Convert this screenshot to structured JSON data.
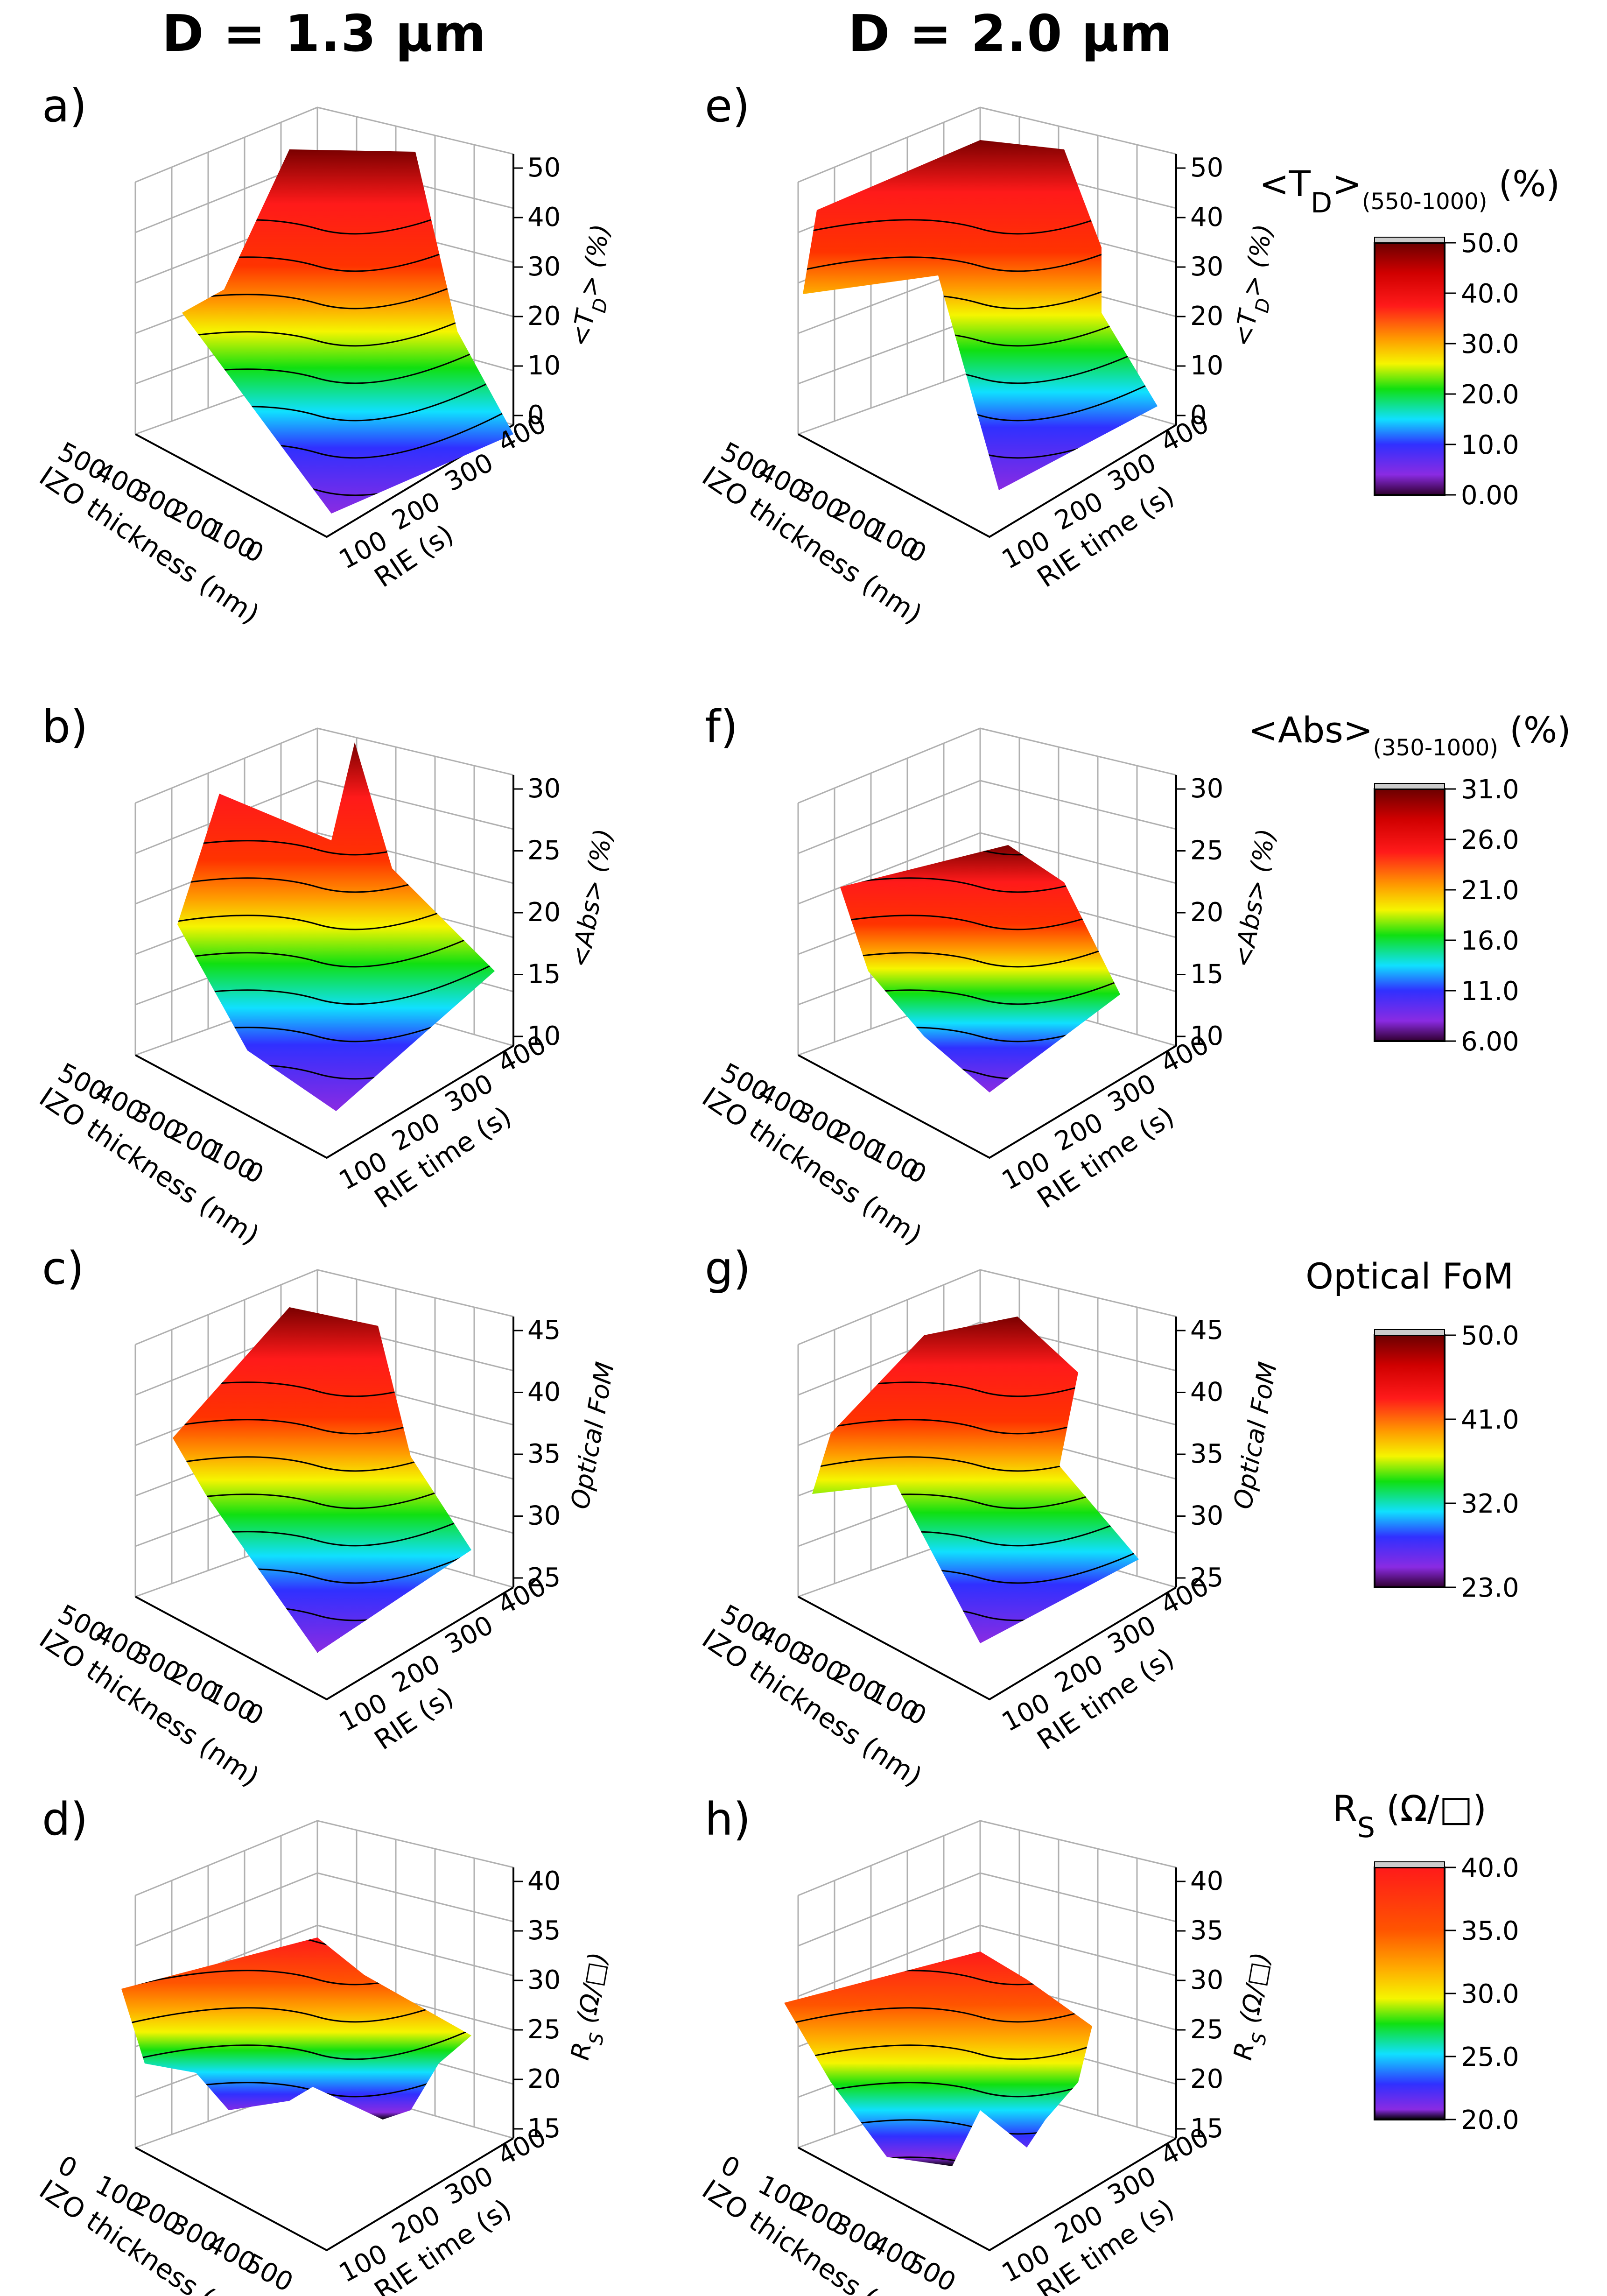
{
  "columns": [
    {
      "title": "D = 1.3 µm"
    },
    {
      "title": "D = 2.0 µm"
    }
  ],
  "colorbars": [
    {
      "title": "<T",
      "title_sub": "D",
      "title_tail": ">",
      "title_sub2": "(550-1000)",
      "title_unit": "(%)",
      "ticks": [
        "50.0",
        "40.0",
        "30.0",
        "20.0",
        "10.0",
        "0.00"
      ],
      "colors": [
        "#6b0000",
        "#ff1010",
        "#ff9900",
        "#f5f500",
        "#10e010",
        "#10e0ff",
        "#3030ff",
        "#8a2be2",
        "#300030"
      ]
    },
    {
      "title": "<Abs>",
      "title_sub2": "(350-1000)",
      "title_unit": "(%)",
      "ticks": [
        "31.0",
        "26.0",
        "21.0",
        "16.0",
        "11.0",
        "6.00"
      ],
      "colors": [
        "#6b0000",
        "#ff1010",
        "#ff9900",
        "#f5f500",
        "#10e010",
        "#10e0ff",
        "#3030ff",
        "#8a2be2",
        "#300030"
      ]
    },
    {
      "title": "Optical FoM",
      "ticks": [
        "50.0",
        "41.0",
        "32.0",
        "23.0"
      ],
      "colors": [
        "#6b0000",
        "#ff1010",
        "#ff9900",
        "#f5f500",
        "#10e010",
        "#10e0ff",
        "#3030ff",
        "#8a2be2",
        "#300030"
      ]
    },
    {
      "title": "R",
      "title_sub": "S",
      "title_unit": "(Ω/□)",
      "ticks": [
        "40.0",
        "35.0",
        "30.0",
        "25.0",
        "20.0"
      ],
      "colors": [
        "#6b0000",
        "#ff1010",
        "#ff9900",
        "#f5f500",
        "#10e010",
        "#10e0ff",
        "#3030ff",
        "#8a2be2",
        "#000000"
      ]
    }
  ],
  "chart_data": [
    {
      "type": "surface3d",
      "panel": "a)",
      "zlabel": "<T",
      "zlabel_sub": "D",
      "zlabel_tail": "> (%)",
      "xlabel": "IZO thickness (nm)",
      "ylabel": "RIE (s)",
      "xticks": [
        "500",
        "400",
        "300",
        "200",
        "100",
        "0"
      ],
      "yticks": [
        "100",
        "200",
        "300",
        "400"
      ],
      "zticks": [
        "50",
        "40",
        "30",
        "20",
        "10",
        "0"
      ],
      "zlim": [
        0,
        50
      ]
    },
    {
      "type": "surface3d",
      "panel": "b)",
      "zlabel": "<Abs> (%)",
      "xlabel": "IZO thickness (nm)",
      "ylabel": "RIE time (s)",
      "xticks": [
        "500",
        "400",
        "300",
        "200",
        "100",
        "0"
      ],
      "yticks": [
        "100",
        "200",
        "300",
        "400"
      ],
      "zticks": [
        "30",
        "25",
        "20",
        "15",
        "10"
      ],
      "zlim": [
        6,
        31
      ]
    },
    {
      "type": "surface3d",
      "panel": "c)",
      "zlabel": "Optical FoM",
      "xlabel": "IZO thickness (nm)",
      "ylabel": "RIE (s)",
      "xticks": [
        "500",
        "400",
        "300",
        "200",
        "100",
        "0"
      ],
      "yticks": [
        "100",
        "200",
        "300",
        "400"
      ],
      "zticks": [
        "45",
        "40",
        "35",
        "30",
        "25"
      ],
      "zlim": [
        23,
        50
      ]
    },
    {
      "type": "surface3d",
      "panel": "d)",
      "zlabel": "R",
      "zlabel_sub": "S",
      "zlabel_tail": " (Ω/□)",
      "xlabel": "IZO thickness (nm)",
      "ylabel": "RIE time (s)",
      "xticks": [
        "0",
        "100",
        "200",
        "300",
        "400",
        "500"
      ],
      "yticks": [
        "100",
        "200",
        "300",
        "400"
      ],
      "zticks": [
        "40",
        "35",
        "30",
        "25",
        "20",
        "15"
      ],
      "zlim": [
        15,
        40
      ]
    },
    {
      "type": "surface3d",
      "panel": "e)",
      "zlabel": "<T",
      "zlabel_sub": "D",
      "zlabel_tail": "> (%)",
      "xlabel": "IZO thickness (nm)",
      "ylabel": "RIE time (s)",
      "xticks": [
        "500",
        "400",
        "300",
        "200",
        "100",
        "0"
      ],
      "yticks": [
        "100",
        "200",
        "300",
        "400"
      ],
      "zticks": [
        "50",
        "40",
        "30",
        "20",
        "10",
        "0"
      ],
      "zlim": [
        0,
        50
      ]
    },
    {
      "type": "surface3d",
      "panel": "f)",
      "zlabel": "<Abs> (%)",
      "xlabel": "IZO thickness (nm)",
      "ylabel": "RIE time (s)",
      "xticks": [
        "500",
        "400",
        "300",
        "200",
        "100",
        "0"
      ],
      "yticks": [
        "100",
        "200",
        "300",
        "400"
      ],
      "zticks": [
        "30",
        "25",
        "20",
        "15",
        "10"
      ],
      "zlim": [
        6,
        31
      ]
    },
    {
      "type": "surface3d",
      "panel": "g)",
      "zlabel": "Optical FoM",
      "xlabel": "IZO thickness (nm)",
      "ylabel": "RIE time (s)",
      "xticks": [
        "500",
        "400",
        "300",
        "200",
        "100",
        "0"
      ],
      "yticks": [
        "100",
        "200",
        "300",
        "400"
      ],
      "zticks": [
        "45",
        "40",
        "35",
        "30",
        "25"
      ],
      "zlim": [
        23,
        50
      ]
    },
    {
      "type": "surface3d",
      "panel": "h)",
      "zlabel": "R",
      "zlabel_sub": "S",
      "zlabel_tail": " (Ω/□)",
      "xlabel": "IZO thickness (nm)",
      "ylabel": "RIE time (s)",
      "xticks": [
        "0",
        "100",
        "200",
        "300",
        "400",
        "500"
      ],
      "yticks": [
        "100",
        "200",
        "300",
        "400"
      ],
      "zticks": [
        "40",
        "35",
        "30",
        "25",
        "20",
        "15"
      ],
      "zlim": [
        15,
        40
      ]
    }
  ]
}
